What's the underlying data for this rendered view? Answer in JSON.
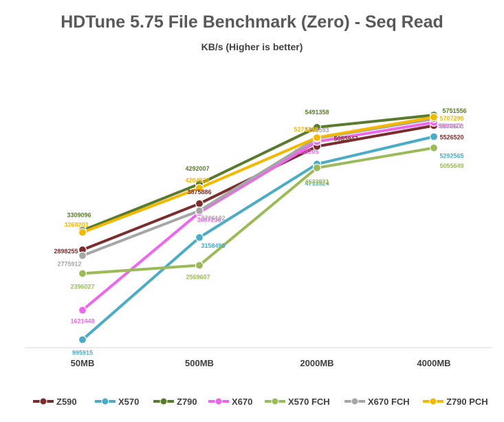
{
  "chart_data": {
    "type": "line",
    "title": "HDTune 5.75 File Benchmark (Zero) - Seq Read",
    "subtitle": "KB/s (Higher is better)",
    "categories": [
      "50MB",
      "500MB",
      "2000MB",
      "4000MB"
    ],
    "ylim": [
      900000,
      6000000
    ],
    "grid": false,
    "legend_position": "bottom",
    "series": [
      {
        "name": "Z590",
        "color": "#7B2C2C",
        "values": [
          2898255,
          3875886,
          5085947,
          5526520
        ]
      },
      {
        "name": "X570",
        "color": "#4BACC6",
        "values": [
          995915,
          3158495,
          4713524,
          5292565
        ]
      },
      {
        "name": "Z790",
        "color": "#5A7A2E",
        "values": [
          3309096,
          4292007,
          5491358,
          5751556
        ]
      },
      {
        "name": "X670",
        "color": "#EE66EE",
        "values": [
          1621448,
          3687236,
          5188205,
          5593877
        ]
      },
      {
        "name": "X570 FCH",
        "color": "#9BBB59",
        "values": [
          2396027,
          2569607,
          4633831,
          5055649
        ]
      },
      {
        "name": "X670 FCH",
        "color": "#A6A6A6",
        "values": [
          2775912,
          3726102,
          5259593,
          5670603
        ]
      },
      {
        "name": "Z790 PCH",
        "color": "#F5B800",
        "values": [
          3268203,
          4204938,
          5272288,
          5707295
        ]
      }
    ]
  }
}
